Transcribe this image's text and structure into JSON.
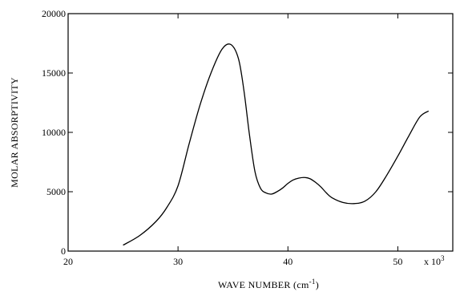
{
  "chart_data": {
    "type": "line",
    "title": "",
    "xlabel": "WAVE  NUMBER (cm",
    "xlabel_superscript": "-1",
    "xlabel_suffix": ")",
    "ylabel": "MOLAR  ABSORPTIVITY",
    "x_multiplier": "x 10",
    "x_multiplier_exp": "3",
    "xlim": [
      20,
      55
    ],
    "ylim": [
      0,
      20000
    ],
    "x_ticks": [
      20,
      30,
      40,
      50
    ],
    "x_tick_labels": [
      "20",
      "30",
      "40",
      "50"
    ],
    "y_ticks": [
      0,
      5000,
      10000,
      15000,
      20000
    ],
    "y_tick_labels": [
      "0",
      "5000",
      "10000",
      "15000",
      "20000"
    ],
    "grid": false,
    "legend": "none",
    "line_color": "#000000",
    "series": [
      {
        "x": [
          25.0,
          26.5,
          28.0,
          29.0,
          30.0,
          31.0,
          32.0,
          33.0,
          34.0,
          34.8,
          35.5,
          36.0,
          36.5,
          37.0,
          37.5,
          38.0,
          38.5,
          39.0,
          39.5,
          40.0,
          40.5,
          41.0,
          41.5,
          42.0,
          42.5,
          43.0,
          43.5,
          44.0,
          45.0,
          46.0,
          47.0,
          48.0,
          49.0,
          50.0,
          51.0,
          52.0,
          52.8
        ],
        "y": [
          500,
          1300,
          2500,
          3700,
          5500,
          9000,
          12300,
          15000,
          17000,
          17400,
          16200,
          13500,
          9800,
          6700,
          5300,
          4900,
          4800,
          5000,
          5300,
          5700,
          6000,
          6150,
          6200,
          6100,
          5800,
          5400,
          4900,
          4500,
          4100,
          4000,
          4200,
          5000,
          6400,
          8000,
          9700,
          11300,
          11800
        ]
      }
    ]
  }
}
